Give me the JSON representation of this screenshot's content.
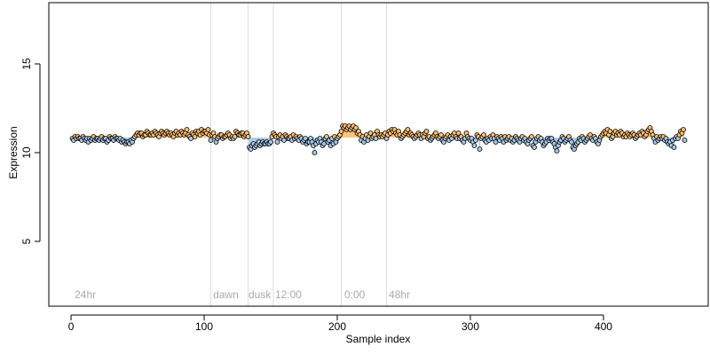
{
  "chart_data": {
    "type": "scatter",
    "xlabel": "Sample index",
    "ylabel": "Expression",
    "xlim": [
      -16.7,
      478.7
    ],
    "ylim": [
      1.35,
      18.45
    ],
    "xticks": [
      0,
      100,
      200,
      300,
      400
    ],
    "yticks": [
      5,
      10,
      15
    ],
    "reference": 10.85,
    "above_color": "#fdbf6f",
    "below_color": "#a6c8e8",
    "point_stroke": "#000000",
    "vlines": [
      105,
      133,
      152,
      203,
      237
    ],
    "vline_color": "#dddddd",
    "annotations": [
      {
        "x": 2.7,
        "label": "24hr"
      },
      {
        "x": 106.7,
        "label": "dawn"
      },
      {
        "x": 133.3,
        "label": "dusk"
      },
      {
        "x": 153.3,
        "label": "12:00"
      },
      {
        "x": 205.3,
        "label": "0:00"
      },
      {
        "x": 238.7,
        "label": "48hr"
      }
    ],
    "x": [
      1,
      2,
      3,
      4,
      5,
      6,
      7,
      8,
      9,
      10,
      11,
      12,
      13,
      14,
      15,
      16,
      17,
      18,
      19,
      20,
      21,
      22,
      23,
      24,
      25,
      26,
      27,
      28,
      29,
      30,
      31,
      32,
      33,
      34,
      35,
      36,
      37,
      38,
      39,
      40,
      41,
      42,
      43,
      44,
      45,
      46,
      47,
      48,
      49,
      50,
      51,
      52,
      53,
      54,
      55,
      56,
      57,
      58,
      59,
      60,
      61,
      62,
      63,
      64,
      65,
      66,
      67,
      68,
      69,
      70,
      71,
      72,
      73,
      74,
      75,
      76,
      77,
      78,
      79,
      80,
      81,
      82,
      83,
      84,
      85,
      86,
      87,
      88,
      89,
      90,
      91,
      92,
      93,
      94,
      95,
      96,
      97,
      98,
      99,
      100,
      101,
      102,
      103,
      104,
      105,
      106,
      107,
      108,
      109,
      110,
      111,
      112,
      113,
      114,
      115,
      116,
      117,
      118,
      119,
      120,
      121,
      122,
      123,
      124,
      125,
      126,
      127,
      128,
      129,
      130,
      131,
      132,
      133,
      134,
      135,
      136,
      137,
      138,
      139,
      140,
      141,
      142,
      143,
      144,
      145,
      146,
      147,
      148,
      149,
      150,
      151,
      152,
      153,
      154,
      155,
      156,
      157,
      158,
      159,
      160,
      161,
      162,
      163,
      164,
      165,
      166,
      167,
      168,
      169,
      170,
      171,
      172,
      173,
      174,
      175,
      176,
      177,
      178,
      179,
      180,
      181,
      182,
      183,
      184,
      185,
      186,
      187,
      188,
      189,
      190,
      191,
      192,
      193,
      194,
      195,
      196,
      197,
      198,
      199,
      200,
      201,
      202,
      203,
      204,
      205,
      206,
      207,
      208,
      209,
      210,
      211,
      212,
      213,
      214,
      215,
      216,
      217,
      218,
      219,
      220,
      221,
      222,
      223,
      224,
      225,
      226,
      227,
      228,
      229,
      230,
      231,
      232,
      233,
      234,
      235,
      236,
      237,
      238,
      239,
      240,
      241,
      242,
      243,
      244,
      245,
      246,
      247,
      248,
      249,
      250,
      251,
      252,
      253,
      254,
      255,
      256,
      257,
      258,
      259,
      260,
      261,
      262,
      263,
      264,
      265,
      266,
      267,
      268,
      269,
      270,
      271,
      272,
      273,
      274,
      275,
      276,
      277,
      278,
      279,
      280,
      281,
      282,
      283,
      284,
      285,
      286,
      287,
      288,
      289,
      290,
      291,
      292,
      293,
      294,
      295,
      296,
      297,
      298,
      299,
      300,
      301,
      302,
      303,
      304,
      305,
      306,
      307,
      308,
      309,
      310,
      311,
      312,
      313,
      314,
      315,
      316,
      317,
      318,
      319,
      320,
      321,
      322,
      323,
      324,
      325,
      326,
      327,
      328,
      329,
      330,
      331,
      332,
      333,
      334,
      335,
      336,
      337,
      338,
      339,
      340,
      341,
      342,
      343,
      344,
      345,
      346,
      347,
      348,
      349,
      350,
      351,
      352,
      353,
      354,
      355,
      356,
      357,
      358,
      359,
      360,
      361,
      362,
      363,
      364,
      365,
      366,
      367,
      368,
      369,
      370,
      371,
      372,
      373,
      374,
      375,
      376,
      377,
      378,
      379,
      380,
      381,
      382,
      383,
      384,
      385,
      386,
      387,
      388,
      389,
      390,
      391,
      392,
      393,
      394,
      395,
      396,
      397,
      398,
      399,
      400,
      401,
      402,
      403,
      404,
      405,
      406,
      407,
      408,
      409,
      410,
      411,
      412,
      413,
      414,
      415,
      416,
      417,
      418,
      419,
      420,
      421,
      422,
      423,
      424,
      425,
      426,
      427,
      428,
      429,
      430,
      431,
      432,
      433,
      434,
      435,
      436,
      437,
      438,
      439,
      440,
      441,
      442,
      443,
      444,
      445,
      446,
      447,
      448,
      449,
      450,
      451,
      452,
      453,
      454,
      455,
      456,
      457,
      458,
      459,
      460,
      461
    ],
    "values": [
      10.8,
      10.7,
      10.9,
      10.8,
      10.9,
      10.8,
      10.8,
      10.7,
      10.9,
      10.8,
      10.7,
      10.8,
      10.6,
      10.8,
      10.7,
      10.8,
      10.9,
      10.7,
      10.8,
      10.8,
      10.7,
      10.8,
      10.9,
      10.7,
      10.8,
      10.8,
      10.6,
      10.7,
      10.9,
      10.8,
      10.8,
      10.7,
      10.9,
      10.8,
      10.8,
      10.7,
      10.8,
      10.6,
      10.7,
      10.6,
      10.5,
      10.6,
      10.6,
      10.5,
      10.7,
      10.6,
      10.8,
      10.9,
      11.0,
      11.1,
      11.0,
      11.1,
      11.1,
      10.9,
      11.0,
      11.0,
      11.2,
      11.1,
      11.0,
      11.0,
      11.1,
      11.0,
      11.2,
      11.1,
      11.0,
      10.9,
      11.1,
      11.2,
      11.1,
      11.0,
      11.1,
      11.2,
      11.1,
      11.0,
      11.1,
      11.0,
      10.9,
      11.1,
      11.2,
      11.0,
      11.1,
      11.0,
      11.2,
      11.1,
      11.0,
      11.1,
      11.3,
      11.0,
      10.9,
      10.8,
      11.1,
      11.0,
      10.9,
      11.2,
      11.1,
      11.2,
      11.0,
      11.3,
      11.1,
      11.2,
      11.2,
      11.1,
      11.3,
      11.0,
      10.7,
      11.0,
      11.1,
      10.9,
      10.6,
      10.8,
      10.9,
      11.0,
      11.0,
      10.8,
      10.9,
      10.9,
      11.0,
      11.1,
      11.0,
      10.8,
      10.9,
      10.8,
      10.9,
      11.2,
      11.1,
      11.0,
      11.0,
      11.1,
      11.1,
      10.9,
      11.0,
      11.1,
      10.9,
      10.3,
      10.2,
      10.4,
      10.5,
      10.3,
      10.4,
      10.5,
      10.6,
      10.4,
      10.5,
      10.6,
      10.5,
      10.5,
      10.6,
      10.5,
      10.5,
      10.6,
      10.9,
      11.1,
      11.0,
      10.9,
      10.6,
      10.9,
      11.0,
      10.8,
      10.9,
      10.7,
      11.0,
      10.9,
      10.8,
      10.8,
      10.9,
      10.7,
      11.0,
      10.8,
      10.9,
      10.8,
      10.7,
      10.9,
      10.8,
      10.6,
      10.7,
      10.8,
      10.5,
      10.6,
      10.6,
      10.8,
      10.6,
      10.4,
      10.0,
      10.5,
      10.7,
      10.6,
      10.8,
      10.6,
      10.4,
      10.5,
      10.8,
      10.9,
      10.6,
      10.7,
      10.4,
      10.8,
      10.5,
      10.9,
      10.6,
      10.8,
      10.9,
      11.0,
      11.2,
      11.5,
      11.4,
      11.5,
      11.3,
      11.4,
      11.5,
      11.3,
      11.4,
      11.5,
      11.3,
      11.4,
      11.1,
      11.2,
      11.0,
      10.7,
      10.9,
      10.6,
      10.8,
      11.0,
      10.7,
      10.9,
      11.1,
      10.8,
      10.9,
      11.0,
      10.8,
      11.2,
      11.0,
      10.9,
      11.0,
      10.9,
      11.0,
      11.1,
      10.8,
      11.0,
      11.2,
      11.1,
      11.3,
      11.2,
      11.3,
      11.1,
      11.0,
      11.2,
      11.0,
      10.8,
      10.9,
      11.0,
      11.1,
      11.2,
      11.3,
      11.0,
      11.1,
      11.0,
      10.9,
      10.8,
      10.9,
      11.0,
      11.1,
      11.0,
      10.8,
      11.0,
      10.9,
      11.1,
      11.2,
      10.8,
      10.9,
      10.7,
      10.8,
      10.9,
      11.0,
      11.1,
      10.9,
      10.8,
      10.9,
      11.0,
      10.7,
      10.6,
      10.8,
      10.9,
      11.0,
      10.7,
      10.9,
      10.8,
      11.0,
      11.1,
      10.9,
      10.8,
      11.1,
      10.8,
      10.9,
      10.7,
      10.6,
      10.8,
      11.1,
      10.9,
      10.8,
      10.7,
      10.8,
      10.6,
      10.4,
      10.7,
      11.0,
      10.9,
      10.2,
      10.8,
      10.9,
      11.0,
      10.7,
      10.6,
      10.8,
      10.7,
      10.9,
      10.8,
      11.0,
      10.8,
      10.6,
      10.9,
      10.8,
      10.7,
      10.9,
      10.8,
      10.6,
      10.9,
      10.7,
      10.8,
      10.9,
      10.7,
      10.8,
      10.6,
      10.7,
      10.9,
      10.8,
      10.7,
      10.6,
      10.8,
      10.9,
      10.7,
      10.8,
      10.6,
      10.5,
      10.7,
      10.8,
      10.9,
      10.4,
      10.3,
      10.6,
      10.8,
      10.9,
      10.7,
      10.8,
      10.6,
      10.4,
      10.5,
      10.6,
      10.8,
      10.7,
      10.8,
      10.8,
      10.6,
      10.5,
      10.3,
      10.1,
      10.4,
      10.6,
      10.7,
      10.9,
      10.8,
      10.6,
      10.7,
      10.8,
      10.9,
      10.7,
      10.6,
      10.3,
      10.2,
      10.4,
      10.5,
      10.6,
      10.8,
      10.7,
      10.9,
      10.8,
      10.6,
      10.7,
      10.8,
      10.9,
      11.0,
      10.8,
      10.7,
      10.9,
      10.8,
      10.6,
      10.5,
      10.7,
      10.9,
      11.0,
      11.1,
      11.2,
      11.1,
      11.3,
      11.0,
      11.2,
      10.8,
      10.9,
      11.1,
      11.2,
      11.0,
      11.1,
      11.0,
      11.2,
      11.1,
      10.9,
      11.0,
      10.9,
      11.1,
      11.0,
      10.9,
      11.0,
      11.1,
      11.0,
      10.8,
      10.9,
      11.0,
      11.1,
      11.0,
      11.2,
      11.1,
      10.9,
      11.0,
      11.2,
      11.3,
      11.4,
      11.2,
      11.0,
      10.8,
      10.6,
      10.9,
      10.7,
      10.8,
      10.9,
      10.8,
      10.9,
      10.7,
      10.8,
      10.6,
      10.5,
      10.6,
      10.4,
      10.7,
      10.3,
      10.8,
      10.9,
      10.8,
      11.0,
      11.2,
      11.1,
      11.3,
      10.7
    ]
  }
}
